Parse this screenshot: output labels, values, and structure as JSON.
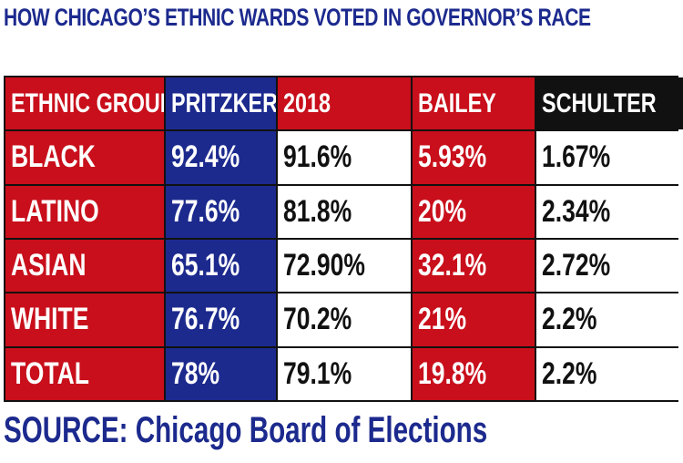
{
  "title": "HOW CHICAGO’S ETHNIC WARDS VOTED IN GOVERNOR’S RACE",
  "source": "SOURCE: Chicago Board of Elections",
  "colors": {
    "red": "#c80f1b",
    "blue": "#1c2a8e",
    "black": "#111111",
    "white": "#ffffff"
  },
  "chart_data": {
    "type": "table",
    "title": "HOW CHICAGO’S ETHNIC WARDS VOTED IN GOVERNOR’S RACE",
    "columns": [
      "ETHNIC GROUP",
      "PRITZKER",
      "2018",
      "BAILEY",
      "SCHULTER"
    ],
    "rows": [
      [
        "BLACK",
        "92.4%",
        "91.6%",
        "5.93%",
        "1.67%"
      ],
      [
        "LATINO",
        "77.6%",
        "81.8%",
        "20%",
        "2.34%"
      ],
      [
        "ASIAN",
        "65.1%",
        "72.90%",
        "32.1%",
        "2.72%"
      ],
      [
        "WHITE",
        "76.7%",
        "70.2%",
        "21%",
        "2.2%"
      ],
      [
        "TOTAL",
        "78%",
        "79.1%",
        "19.8%",
        "2.2%"
      ]
    ],
    "source": "SOURCE: Chicago Board of Elections"
  }
}
